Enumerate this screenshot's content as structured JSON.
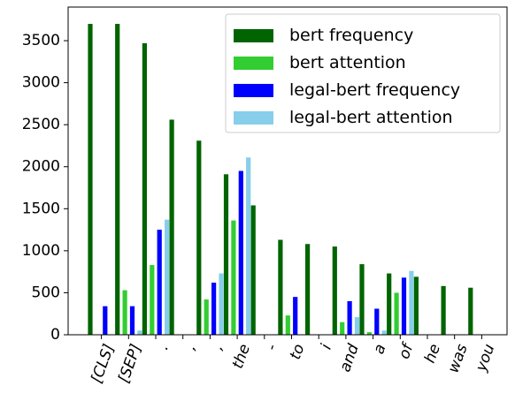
{
  "chart_data": {
    "type": "bar",
    "title": "",
    "xlabel": "",
    "ylabel": "",
    "ylim": [
      0,
      3900
    ],
    "yticks": [
      0,
      500,
      1000,
      1500,
      2000,
      2500,
      3000,
      3500
    ],
    "grid": false,
    "legend_position": "top-right",
    "categories": [
      "[CLS]",
      "[SEP]",
      ".",
      ",",
      ",",
      "the",
      "-",
      "to",
      "i",
      "and",
      "a",
      "of",
      "he",
      "was",
      "you"
    ],
    "series": [
      {
        "name": "bert frequency",
        "color": "#006400",
        "values": [
          3700,
          3700,
          3470,
          2560,
          2310,
          1910,
          1540,
          1130,
          1080,
          1050,
          840,
          730,
          690,
          580,
          560
        ]
      },
      {
        "name": "bert attention",
        "color": "#32cd32",
        "values": [
          0,
          530,
          830,
          0,
          420,
          1360,
          0,
          230,
          0,
          150,
          30,
          500,
          0,
          0,
          0
        ]
      },
      {
        "name": "legal-bert frequency",
        "color": "#0000ff",
        "values": [
          340,
          340,
          1250,
          0,
          620,
          1950,
          0,
          450,
          0,
          400,
          310,
          680,
          0,
          0,
          0
        ]
      },
      {
        "name": "legal-bert attention",
        "color": "#87ceeb",
        "values": [
          0,
          50,
          1370,
          0,
          730,
          2110,
          0,
          0,
          0,
          210,
          50,
          760,
          0,
          0,
          0
        ]
      }
    ]
  }
}
